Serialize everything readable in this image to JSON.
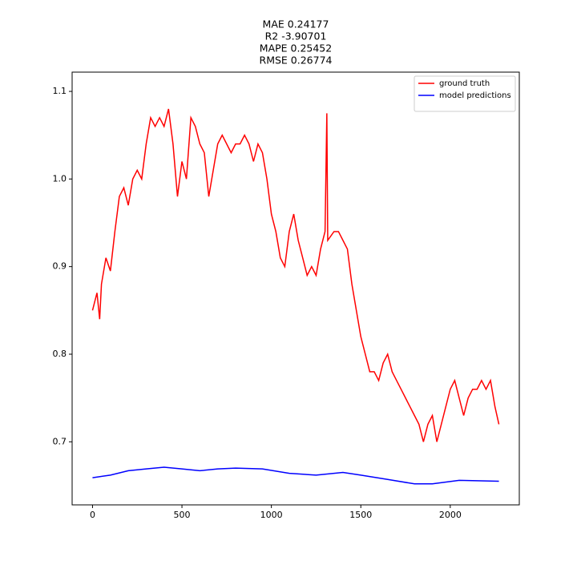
{
  "chart_data": {
    "type": "line",
    "title": [
      "MAE 0.24177",
      "R2 -3.90701",
      "MAPE 0.25452",
      "RMSE 0.26774"
    ],
    "xlim": [
      -114,
      2386
    ],
    "ylim": [
      0.628,
      1.122
    ],
    "xticks": [
      0,
      500,
      1000,
      1500,
      2000
    ],
    "yticks": [
      0.7,
      0.8,
      0.9,
      {
        "value": 1.0,
        "label": "1.0"
      },
      1.1
    ],
    "legend": "upper right",
    "series": [
      {
        "name": "ground truth",
        "color": "#ff0000",
        "x": [
          0,
          25,
          40,
          50,
          75,
          100,
          125,
          150,
          175,
          200,
          225,
          250,
          275,
          300,
          325,
          350,
          375,
          400,
          425,
          450,
          475,
          500,
          525,
          550,
          575,
          600,
          625,
          650,
          675,
          700,
          725,
          750,
          775,
          800,
          825,
          850,
          875,
          900,
          925,
          950,
          975,
          1000,
          1025,
          1050,
          1075,
          1100,
          1125,
          1150,
          1175,
          1200,
          1225,
          1250,
          1275,
          1300,
          1310,
          1315,
          1350,
          1375,
          1400,
          1425,
          1450,
          1475,
          1500,
          1525,
          1550,
          1575,
          1600,
          1625,
          1650,
          1675,
          1700,
          1725,
          1750,
          1775,
          1800,
          1825,
          1850,
          1875,
          1900,
          1925,
          1950,
          1975,
          2000,
          2025,
          2050,
          2075,
          2100,
          2125,
          2150,
          2175,
          2200,
          2225,
          2250,
          2272
        ],
        "values": [
          0.85,
          0.87,
          0.84,
          0.88,
          0.91,
          0.895,
          0.94,
          0.98,
          0.99,
          0.97,
          1.0,
          1.01,
          1.0,
          1.04,
          1.07,
          1.06,
          1.07,
          1.06,
          1.08,
          1.04,
          0.98,
          1.02,
          1.0,
          1.07,
          1.06,
          1.04,
          1.03,
          0.98,
          1.01,
          1.04,
          1.05,
          1.04,
          1.03,
          1.04,
          1.04,
          1.05,
          1.04,
          1.02,
          1.04,
          1.03,
          1.0,
          0.96,
          0.94,
          0.91,
          0.9,
          0.94,
          0.96,
          0.93,
          0.91,
          0.89,
          0.9,
          0.89,
          0.92,
          0.94,
          1.075,
          0.93,
          0.94,
          0.94,
          0.93,
          0.92,
          0.88,
          0.85,
          0.82,
          0.8,
          0.78,
          0.78,
          0.77,
          0.79,
          0.8,
          0.78,
          0.77,
          0.76,
          0.75,
          0.74,
          0.73,
          0.72,
          0.7,
          0.72,
          0.73,
          0.7,
          0.72,
          0.74,
          0.76,
          0.77,
          0.75,
          0.73,
          0.75,
          0.76,
          0.76,
          0.77,
          0.76,
          0.77,
          0.74,
          0.72
        ]
      },
      {
        "name": "model predictions",
        "color": "#0000ff",
        "x": [
          0,
          100,
          200,
          300,
          400,
          500,
          600,
          700,
          800,
          950,
          1100,
          1250,
          1400,
          1500,
          1650,
          1800,
          1900,
          2050,
          2272
        ],
        "values": [
          0.659,
          0.662,
          0.667,
          0.669,
          0.671,
          0.669,
          0.667,
          0.669,
          0.67,
          0.669,
          0.664,
          0.662,
          0.665,
          0.662,
          0.657,
          0.652,
          0.652,
          0.656,
          0.655
        ]
      }
    ]
  }
}
